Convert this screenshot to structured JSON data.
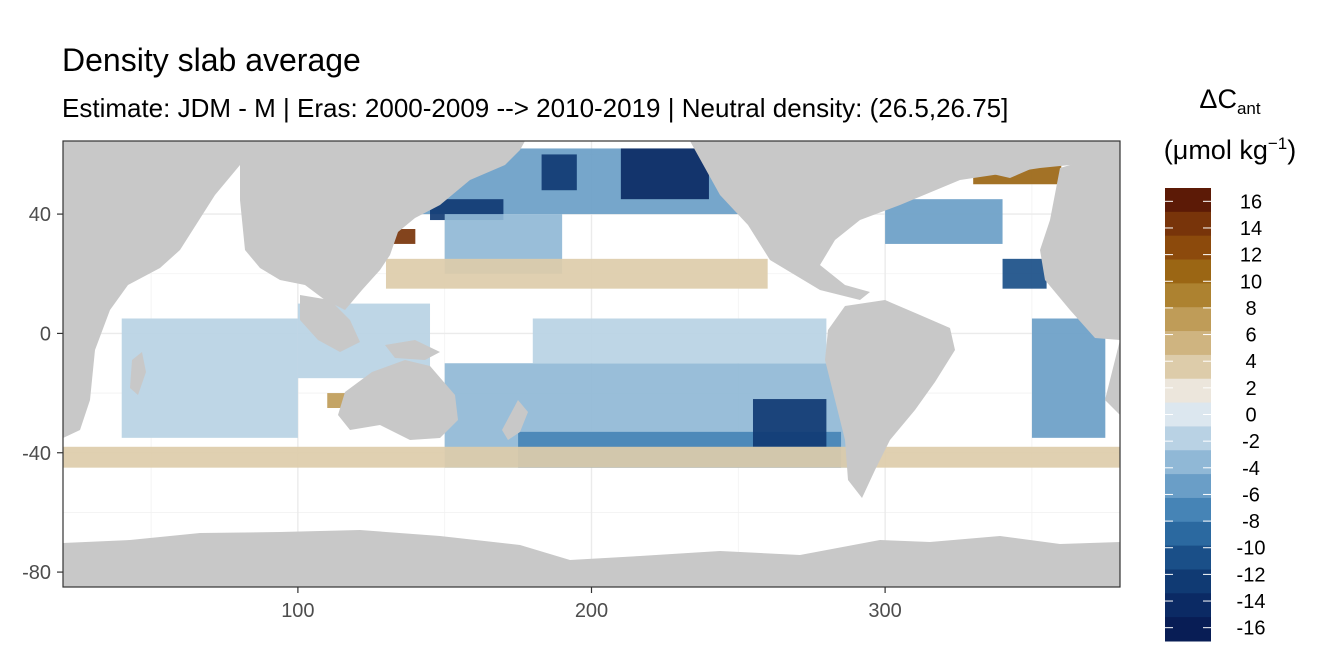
{
  "title": "Density slab average",
  "subtitle": "Estimate: JDM - M | Eras: 2000-2009 --> 2010-2019 | Neutral density: (26.5,26.75]",
  "legend": {
    "title_symbol": "ΔC",
    "title_subscript": "ant",
    "unit_prefix": "(μmol kg",
    "unit_superscript": "−1",
    "unit_suffix": ")",
    "breaks": [
      16,
      14,
      12,
      10,
      8,
      6,
      4,
      2,
      0,
      -2,
      -4,
      -6,
      -8,
      -10,
      -12,
      -14,
      -16
    ],
    "colors": [
      "#5c1a06",
      "#78340a",
      "#8c4a0c",
      "#9b6614",
      "#ad8230",
      "#bf9c58",
      "#cfb480",
      "#ddccaa",
      "#ece6dc",
      "#dce7ef",
      "#b9d2e4",
      "#90b8d6",
      "#6a9ec7",
      "#4684b6",
      "#2b69a0",
      "#1a4f88",
      "#103a73",
      "#0b2a64",
      "#081d55"
    ]
  },
  "chart_data": {
    "type": "heatmap",
    "title": "Density slab average",
    "subtitle": "Estimate: JDM - M | Eras: 2000-2009 --> 2010-2019 | Neutral density: (26.5,26.75]",
    "xlabel": "",
    "ylabel": "",
    "xlim": [
      20,
      380
    ],
    "ylim": [
      -85,
      64.5
    ],
    "x_ticks": [
      100,
      200,
      300
    ],
    "y_ticks": [
      40,
      0,
      -40,
      -80
    ],
    "grid": true,
    "legend_position": "right",
    "value_label": "ΔC_ant (μmol kg⁻¹)",
    "color_range": [
      -17,
      17
    ],
    "regions": [
      {
        "x": [
          100,
          145
        ],
        "y": [
          -15,
          10
        ],
        "value": -2
      },
      {
        "x": [
          40,
          100
        ],
        "y": [
          -35,
          5
        ],
        "value": -2
      },
      {
        "x": [
          150,
          290
        ],
        "y": [
          -45,
          -10
        ],
        "value": -3
      },
      {
        "x": [
          175,
          285
        ],
        "y": [
          -45,
          -33
        ],
        "value": -8
      },
      {
        "x": [
          255,
          280
        ],
        "y": [
          -38,
          -22
        ],
        "value": -13
      },
      {
        "x": [
          140,
          260
        ],
        "y": [
          40,
          62
        ],
        "value": -6
      },
      {
        "x": [
          210,
          240
        ],
        "y": [
          45,
          62
        ],
        "value": -14
      },
      {
        "x": [
          183,
          195
        ],
        "y": [
          48,
          60
        ],
        "value": -12
      },
      {
        "x": [
          145,
          170
        ],
        "y": [
          38,
          45
        ],
        "value": -12
      },
      {
        "x": [
          150,
          190
        ],
        "y": [
          20,
          40
        ],
        "value": -4
      },
      {
        "x": [
          180,
          280
        ],
        "y": [
          -10,
          5
        ],
        "value": -2
      },
      {
        "x": [
          350,
          375
        ],
        "y": [
          -35,
          5
        ],
        "value": -5
      },
      {
        "x": [
          340,
          355
        ],
        "y": [
          15,
          25
        ],
        "value": -10
      },
      {
        "x": [
          330,
          360
        ],
        "y": [
          50,
          57
        ],
        "value": 10
      },
      {
        "x": [
          300,
          340
        ],
        "y": [
          30,
          45
        ],
        "value": -6
      },
      {
        "x": [
          20,
          380
        ],
        "y": [
          -45,
          -38
        ],
        "value": 3
      },
      {
        "x": [
          130,
          260
        ],
        "y": [
          15,
          25
        ],
        "value": 3
      },
      {
        "x": [
          110,
          140
        ],
        "y": [
          -25,
          -20
        ],
        "value": 8
      },
      {
        "x": [
          130,
          140
        ],
        "y": [
          30,
          35
        ],
        "value": 14
      }
    ]
  }
}
